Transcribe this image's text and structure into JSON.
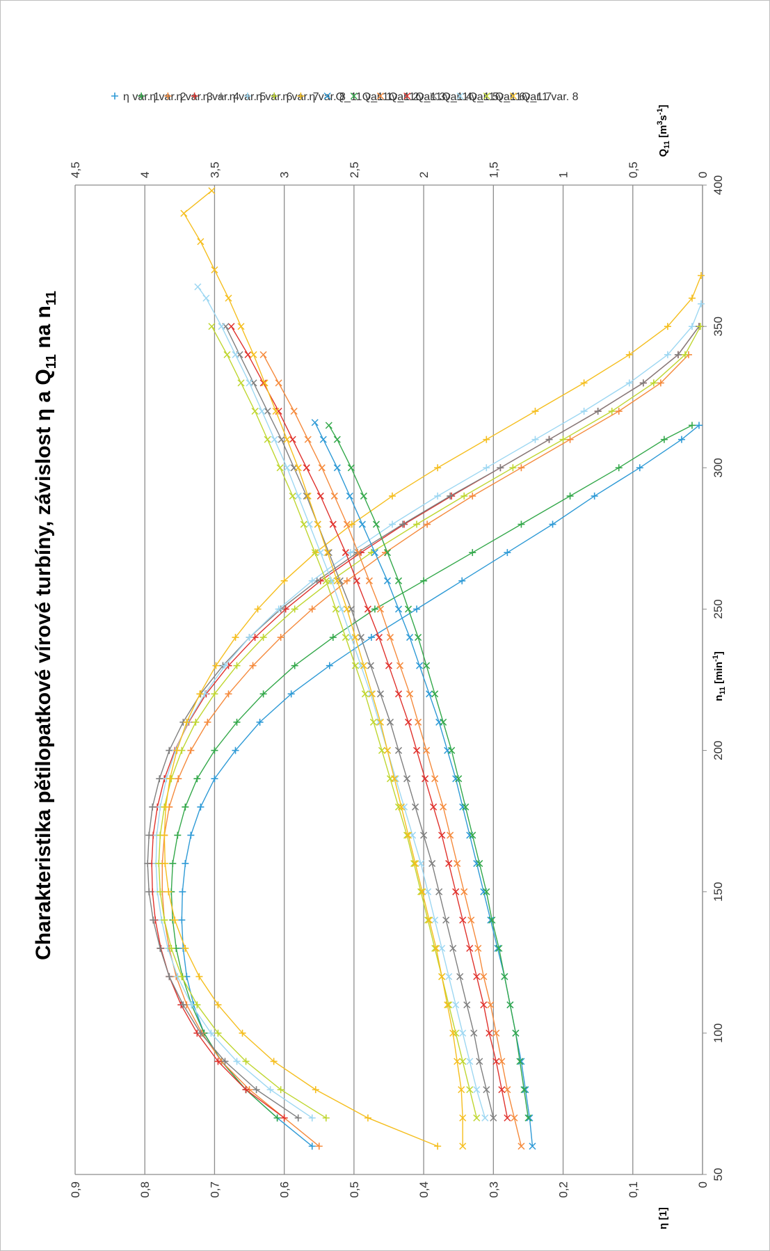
{
  "chart_data": {
    "type": "line",
    "title": "Charakteristika pětilopatkové vírové turbíny, závislost η a Q",
    "title_sub": "11",
    "title_suffix": " na n",
    "title_sub2": "11",
    "xlabel": "n",
    "xlabel_sub": "11",
    "xlabel_unit": " [min",
    "xlabel_sup": "-1",
    "xlabel_end": "]",
    "ylabel": "η [1]",
    "y2label": "Q",
    "y2label_sub": "11",
    "y2label_unit": " [m",
    "y2label_sup": "3",
    "y2label_mid": "s",
    "y2label_sup2": "-1",
    "y2label_end": "]",
    "xlim": [
      50,
      400
    ],
    "ylim": [
      0,
      0.9
    ],
    "y2lim": [
      0,
      4.5
    ],
    "x_ticks": [
      "50",
      "100",
      "150",
      "200",
      "250",
      "300",
      "350",
      "400"
    ],
    "y_ticks": [
      "0",
      "0,1",
      "0,2",
      "0,3",
      "0,4",
      "0,5",
      "0,6",
      "0,7",
      "0,8",
      "0,9"
    ],
    "y2_ticks": [
      "0",
      "0,5",
      "1",
      "1,5",
      "2",
      "2,5",
      "3",
      "3,5",
      "4",
      "4,5"
    ],
    "grid": "horizontal major",
    "legend_position": "right",
    "eta_series": [
      {
        "name": "η var. 1",
        "color": "#2E9AD6",
        "x": [
          60,
          70,
          80,
          90,
          100,
          110,
          120,
          130,
          140,
          150,
          160,
          170,
          180,
          190,
          200,
          210,
          220,
          230,
          240,
          250,
          260,
          270,
          280,
          290,
          300,
          310,
          315
        ],
        "y": [
          0.56,
          0.61,
          0.655,
          0.69,
          0.715,
          0.73,
          0.74,
          0.745,
          0.747,
          0.746,
          0.742,
          0.734,
          0.72,
          0.7,
          0.67,
          0.635,
          0.59,
          0.535,
          0.475,
          0.41,
          0.345,
          0.28,
          0.215,
          0.155,
          0.09,
          0.03,
          0.005
        ]
      },
      {
        "name": "η var. 2",
        "color": "#33A84A",
        "x": [
          70,
          80,
          90,
          100,
          110,
          120,
          130,
          140,
          150,
          160,
          170,
          180,
          190,
          200,
          210,
          220,
          230,
          240,
          250,
          260,
          270,
          280,
          290,
          300,
          310,
          315
        ],
        "y": [
          0.61,
          0.655,
          0.69,
          0.715,
          0.733,
          0.746,
          0.755,
          0.76,
          0.762,
          0.76,
          0.753,
          0.742,
          0.725,
          0.7,
          0.668,
          0.63,
          0.585,
          0.53,
          0.47,
          0.4,
          0.33,
          0.26,
          0.19,
          0.12,
          0.055,
          0.015
        ]
      },
      {
        "name": "η var. 3",
        "color": "#F58A3C",
        "x": [
          60,
          70,
          80,
          90,
          100,
          110,
          120,
          130,
          140,
          150,
          160,
          170,
          180,
          190,
          200,
          210,
          220,
          230,
          240,
          250,
          260,
          270,
          280,
          290,
          300,
          310,
          320,
          330,
          340
        ],
        "y": [
          0.55,
          0.6,
          0.65,
          0.69,
          0.718,
          0.74,
          0.755,
          0.765,
          0.772,
          0.775,
          0.775,
          0.772,
          0.765,
          0.752,
          0.734,
          0.71,
          0.68,
          0.645,
          0.605,
          0.56,
          0.51,
          0.455,
          0.395,
          0.33,
          0.26,
          0.19,
          0.12,
          0.06,
          0.02
        ]
      },
      {
        "name": "η var. 4",
        "color": "#E0322D",
        "x": [
          70,
          80,
          90,
          100,
          110,
          120,
          130,
          140,
          150,
          160,
          170,
          180,
          190,
          200,
          210,
          220,
          230,
          240,
          250,
          260,
          270,
          280,
          290,
          300,
          310,
          320,
          330,
          340,
          350
        ],
        "y": [
          0.6,
          0.655,
          0.695,
          0.725,
          0.748,
          0.765,
          0.777,
          0.785,
          0.789,
          0.79,
          0.788,
          0.782,
          0.772,
          0.757,
          0.737,
          0.712,
          0.68,
          0.642,
          0.598,
          0.548,
          0.49,
          0.428,
          0.36,
          0.29,
          0.22,
          0.15,
          0.085,
          0.035,
          0.005
        ]
      },
      {
        "name": "η var. 5",
        "color": "#7F7F7F",
        "x": [
          70,
          80,
          90,
          100,
          110,
          120,
          130,
          140,
          150,
          160,
          170,
          180,
          190,
          200,
          210,
          220,
          230,
          240,
          250,
          260,
          270,
          280,
          290,
          300,
          310,
          320,
          330,
          340,
          350
        ],
        "y": [
          0.58,
          0.64,
          0.685,
          0.72,
          0.745,
          0.765,
          0.778,
          0.788,
          0.794,
          0.796,
          0.794,
          0.789,
          0.779,
          0.765,
          0.745,
          0.72,
          0.688,
          0.65,
          0.605,
          0.553,
          0.495,
          0.43,
          0.362,
          0.29,
          0.22,
          0.15,
          0.085,
          0.035,
          0.005
        ]
      },
      {
        "name": "η var. 6",
        "color": "#9DD7F2",
        "x": [
          70,
          80,
          90,
          100,
          110,
          120,
          130,
          140,
          150,
          160,
          170,
          180,
          190,
          200,
          210,
          220,
          230,
          240,
          250,
          260,
          270,
          280,
          290,
          300,
          310,
          320,
          330,
          340,
          350,
          358
        ],
        "y": [
          0.56,
          0.62,
          0.668,
          0.705,
          0.733,
          0.753,
          0.767,
          0.776,
          0.782,
          0.784,
          0.783,
          0.778,
          0.769,
          0.756,
          0.738,
          0.714,
          0.685,
          0.65,
          0.608,
          0.56,
          0.505,
          0.445,
          0.38,
          0.31,
          0.24,
          0.17,
          0.105,
          0.05,
          0.015,
          0.002
        ]
      },
      {
        "name": "η var. 7",
        "color": "#BFD630",
        "x": [
          70,
          80,
          90,
          100,
          110,
          120,
          130,
          140,
          150,
          160,
          170,
          180,
          190,
          200,
          210,
          220,
          230,
          240,
          250,
          260,
          270,
          280,
          290,
          300,
          310,
          320,
          330,
          340,
          350
        ],
        "y": [
          0.54,
          0.605,
          0.655,
          0.695,
          0.725,
          0.747,
          0.762,
          0.772,
          0.778,
          0.78,
          0.778,
          0.772,
          0.762,
          0.747,
          0.727,
          0.7,
          0.668,
          0.63,
          0.585,
          0.533,
          0.475,
          0.41,
          0.342,
          0.272,
          0.2,
          0.13,
          0.07,
          0.025,
          0.003
        ]
      },
      {
        "name": "η var. 8",
        "color": "#F5BE1E",
        "x": [
          60,
          70,
          80,
          90,
          100,
          110,
          120,
          130,
          140,
          150,
          160,
          170,
          180,
          190,
          200,
          210,
          220,
          230,
          240,
          250,
          260,
          270,
          280,
          290,
          300,
          310,
          320,
          330,
          340,
          350,
          360,
          368
        ],
        "y": [
          0.38,
          0.48,
          0.555,
          0.615,
          0.66,
          0.695,
          0.722,
          0.742,
          0.757,
          0.766,
          0.771,
          0.772,
          0.77,
          0.764,
          0.754,
          0.74,
          0.721,
          0.698,
          0.67,
          0.638,
          0.6,
          0.555,
          0.503,
          0.445,
          0.38,
          0.31,
          0.24,
          0.17,
          0.105,
          0.05,
          0.015,
          0.002
        ]
      }
    ],
    "q_series": [
      {
        "name": "Q_11 var. 1",
        "color": "#2E9AD6",
        "x": [
          60,
          70,
          80,
          90,
          100,
          110,
          120,
          130,
          140,
          150,
          160,
          170,
          180,
          190,
          200,
          210,
          220,
          230,
          240,
          250,
          260,
          270,
          280,
          290,
          300,
          310,
          316
        ],
        "y": [
          1.22,
          1.24,
          1.27,
          1.3,
          1.34,
          1.38,
          1.42,
          1.47,
          1.52,
          1.57,
          1.62,
          1.67,
          1.72,
          1.77,
          1.83,
          1.89,
          1.96,
          2.03,
          2.1,
          2.18,
          2.26,
          2.35,
          2.44,
          2.53,
          2.62,
          2.72,
          2.78
        ]
      },
      {
        "name": "Q_11 var. 2",
        "color": "#33A84A",
        "x": [
          70,
          80,
          90,
          100,
          110,
          120,
          130,
          140,
          150,
          160,
          170,
          180,
          190,
          200,
          210,
          220,
          230,
          240,
          250,
          260,
          270,
          280,
          290,
          300,
          310,
          315
        ],
        "y": [
          1.25,
          1.28,
          1.31,
          1.34,
          1.38,
          1.42,
          1.46,
          1.51,
          1.55,
          1.6,
          1.65,
          1.7,
          1.75,
          1.8,
          1.86,
          1.92,
          1.98,
          2.04,
          2.11,
          2.18,
          2.26,
          2.34,
          2.43,
          2.52,
          2.62,
          2.68
        ]
      },
      {
        "name": "Q_11 var. 3",
        "color": "#F58A3C",
        "x": [
          60,
          70,
          80,
          90,
          100,
          110,
          120,
          130,
          140,
          150,
          160,
          170,
          180,
          190,
          200,
          210,
          220,
          230,
          240,
          250,
          260,
          270,
          280,
          290,
          300,
          310,
          320,
          330,
          340
        ],
        "y": [
          1.3,
          1.35,
          1.4,
          1.44,
          1.48,
          1.52,
          1.57,
          1.61,
          1.66,
          1.71,
          1.76,
          1.81,
          1.86,
          1.92,
          1.98,
          2.04,
          2.1,
          2.17,
          2.24,
          2.31,
          2.39,
          2.47,
          2.55,
          2.64,
          2.73,
          2.83,
          2.93,
          3.04,
          3.15
        ]
      },
      {
        "name": "Q_11 var. 4",
        "color": "#E0322D",
        "x": [
          70,
          80,
          90,
          100,
          110,
          120,
          130,
          140,
          150,
          160,
          170,
          180,
          190,
          200,
          210,
          220,
          230,
          240,
          250,
          260,
          270,
          280,
          290,
          300,
          310,
          320,
          330,
          340,
          350
        ],
        "y": [
          1.4,
          1.44,
          1.48,
          1.53,
          1.57,
          1.62,
          1.67,
          1.72,
          1.77,
          1.82,
          1.87,
          1.93,
          1.99,
          2.05,
          2.11,
          2.18,
          2.25,
          2.32,
          2.4,
          2.48,
          2.56,
          2.65,
          2.74,
          2.84,
          2.94,
          3.04,
          3.15,
          3.26,
          3.38
        ]
      },
      {
        "name": "Q_11 var. 5",
        "color": "#7F7F7F",
        "x": [
          70,
          80,
          90,
          100,
          110,
          120,
          130,
          140,
          150,
          160,
          170,
          180,
          190,
          200,
          210,
          220,
          230,
          240,
          250,
          260,
          270,
          280,
          290,
          300,
          310,
          320,
          330,
          340,
          350
        ],
        "y": [
          1.5,
          1.55,
          1.6,
          1.64,
          1.69,
          1.74,
          1.79,
          1.84,
          1.89,
          1.94,
          2.0,
          2.06,
          2.12,
          2.18,
          2.24,
          2.31,
          2.38,
          2.45,
          2.52,
          2.6,
          2.68,
          2.76,
          2.84,
          2.93,
          3.02,
          3.12,
          3.22,
          3.32,
          3.42
        ]
      },
      {
        "name": "Q_11 var. 6",
        "color": "#9DD7F2",
        "x": [
          70,
          80,
          90,
          100,
          110,
          120,
          130,
          140,
          150,
          160,
          170,
          180,
          190,
          200,
          210,
          220,
          230,
          240,
          250,
          260,
          270,
          280,
          290,
          300,
          310,
          320,
          330,
          340,
          350,
          360,
          364
        ],
        "y": [
          1.56,
          1.62,
          1.67,
          1.72,
          1.77,
          1.82,
          1.87,
          1.92,
          1.97,
          2.02,
          2.08,
          2.14,
          2.2,
          2.26,
          2.32,
          2.38,
          2.45,
          2.52,
          2.59,
          2.66,
          2.74,
          2.82,
          2.9,
          2.98,
          3.07,
          3.16,
          3.25,
          3.35,
          3.45,
          3.56,
          3.62
        ]
      },
      {
        "name": "Q_11 var. 7",
        "color": "#BFD630",
        "x": [
          70,
          80,
          90,
          100,
          110,
          120,
          130,
          140,
          150,
          160,
          170,
          180,
          190,
          200,
          210,
          220,
          230,
          240,
          250,
          260,
          270,
          280,
          290,
          300,
          310,
          320,
          330,
          340,
          350
        ],
        "y": [
          1.62,
          1.67,
          1.72,
          1.77,
          1.82,
          1.87,
          1.92,
          1.97,
          2.02,
          2.07,
          2.12,
          2.18,
          2.24,
          2.3,
          2.36,
          2.42,
          2.49,
          2.56,
          2.63,
          2.7,
          2.78,
          2.86,
          2.94,
          3.03,
          3.12,
          3.21,
          3.31,
          3.41,
          3.52
        ]
      },
      {
        "name": "Q_11 var. 8",
        "color": "#F5BE1E",
        "x": [
          60,
          70,
          80,
          90,
          100,
          110,
          120,
          130,
          140,
          150,
          160,
          170,
          180,
          190,
          200,
          210,
          220,
          230,
          240,
          250,
          260,
          270,
          280,
          290,
          300,
          310,
          320,
          330,
          340,
          350,
          360,
          370,
          380,
          390,
          398
        ],
        "y": [
          1.72,
          1.72,
          1.73,
          1.76,
          1.79,
          1.83,
          1.87,
          1.91,
          1.96,
          2.01,
          2.06,
          2.11,
          2.16,
          2.21,
          2.26,
          2.31,
          2.37,
          2.43,
          2.49,
          2.55,
          2.62,
          2.69,
          2.76,
          2.83,
          2.9,
          2.98,
          3.06,
          3.14,
          3.22,
          3.31,
          3.4,
          3.5,
          3.6,
          3.72,
          3.52
        ]
      }
    ]
  }
}
